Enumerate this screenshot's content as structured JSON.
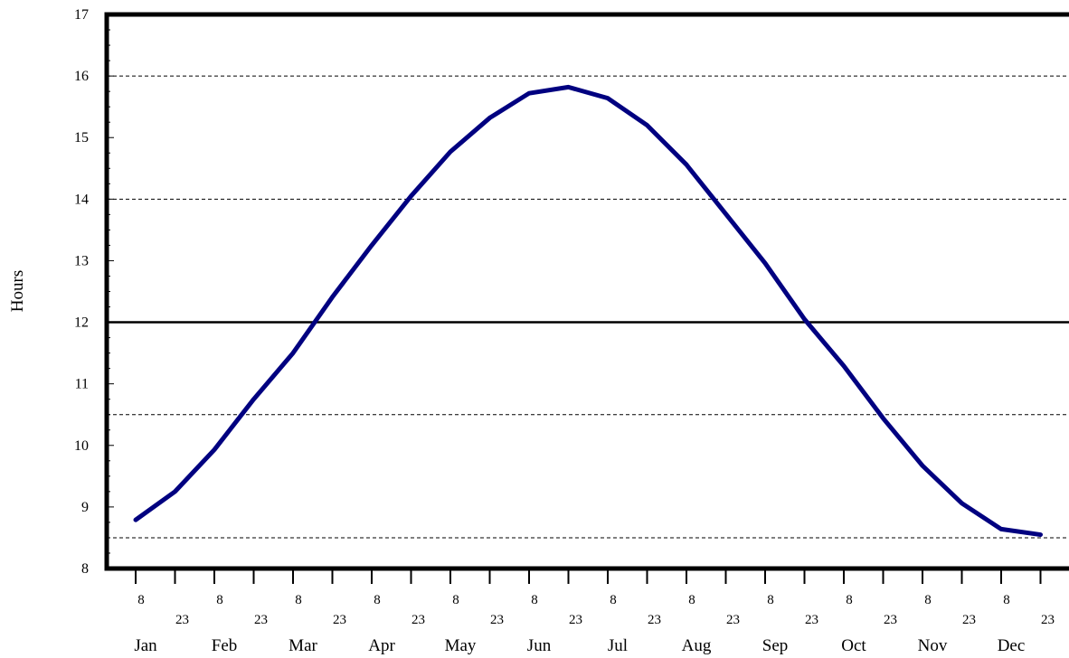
{
  "chart_data": {
    "type": "line",
    "ylabel": "Hours",
    "xlabel": "",
    "title": "",
    "ylim": [
      8,
      17
    ],
    "yticks": [
      8,
      9,
      10,
      11,
      12,
      13,
      14,
      15,
      16,
      17
    ],
    "months": [
      "Jan",
      "Feb",
      "Mar",
      "Apr",
      "May",
      "Jun",
      "Jul",
      "Aug",
      "Sep",
      "Oct",
      "Nov",
      "Dec"
    ],
    "day_ticks": [
      "8",
      "23"
    ],
    "x": [
      "Jan 8",
      "Jan 23",
      "Feb 8",
      "Feb 23",
      "Mar 8",
      "Mar 23",
      "Apr 8",
      "Apr 23",
      "May 8",
      "May 23",
      "Jun 8",
      "Jun 23",
      "Jul 8",
      "Jul 23",
      "Aug 8",
      "Aug 23",
      "Sep 8",
      "Sep 23",
      "Oct 8",
      "Oct 23",
      "Nov 8",
      "Nov 23",
      "Dec 8",
      "Dec 23"
    ],
    "series": [
      {
        "values": [
          8.79,
          9.25,
          9.93,
          10.75,
          11.5,
          12.41,
          13.25,
          14.05,
          14.77,
          15.32,
          15.72,
          15.82,
          15.64,
          15.2,
          14.56,
          13.76,
          12.96,
          12.05,
          11.29,
          10.44,
          9.67,
          9.06,
          8.64,
          8.55
        ],
        "color": "#000080"
      }
    ],
    "reference_lines": [
      {
        "value": 16.0,
        "style": "dashed"
      },
      {
        "value": 14.0,
        "style": "dashed"
      },
      {
        "value": 12.0,
        "style": "solid"
      },
      {
        "value": 10.5,
        "style": "dashed"
      },
      {
        "value": 8.5,
        "style": "dashed"
      }
    ],
    "grid": false,
    "legend": "none"
  }
}
